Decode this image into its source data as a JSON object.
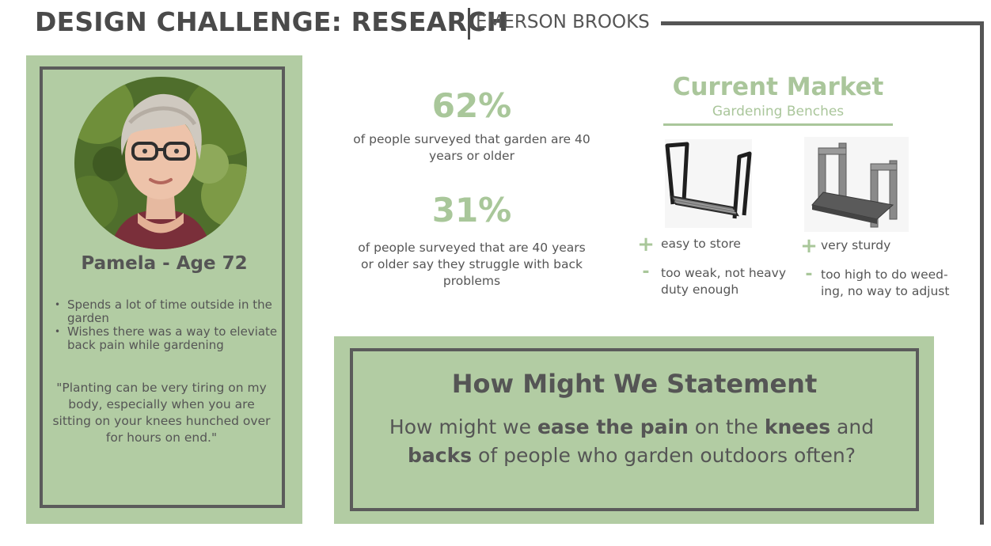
{
  "header": {
    "title": "DESIGN CHALLENGE: RESEARCH",
    "author": "EMERSON BROOKS"
  },
  "persona": {
    "avatar_icon": "person-photo-icon",
    "name": "Pamela - Age 72",
    "bullets": [
      "Spends a lot of time outside in the garden",
      "Wishes there was a way to eleviate back pain while gardening"
    ],
    "quote": "\"Planting can be very tiring on my body, especially when you are sitting on your knees hunched over for hours on end.\""
  },
  "stats": [
    {
      "value": "62%",
      "description": "of people surveyed that garden are 40 years or older"
    },
    {
      "value": "31%",
      "description": "of people surveyed that are 40 years or older say they struggle with back problems"
    }
  ],
  "market": {
    "title": "Current Market",
    "subtitle": "Gardening Benches",
    "products": [
      {
        "image_icon": "folding-kneeler-bench-icon",
        "pro_sign": "+",
        "pro": "easy to store",
        "con_sign": "-",
        "con": "too weak, not heavy duty enough"
      },
      {
        "image_icon": "sturdy-bench-icon",
        "pro_sign": "+",
        "pro": "very sturdy",
        "con_sign": "-",
        "con": "too high to do weed-ing, no way to adjust"
      }
    ]
  },
  "hmw": {
    "title": "How Might We Statement",
    "parts": [
      "How might we ",
      "ease the pain",
      " on the ",
      "knees",
      " and ",
      "backs",
      " of people who garden outdoors often?"
    ]
  },
  "colors": {
    "accent_green": "#a9c79a",
    "panel_green": "#b2cca3",
    "dark_gray": "#555555"
  }
}
